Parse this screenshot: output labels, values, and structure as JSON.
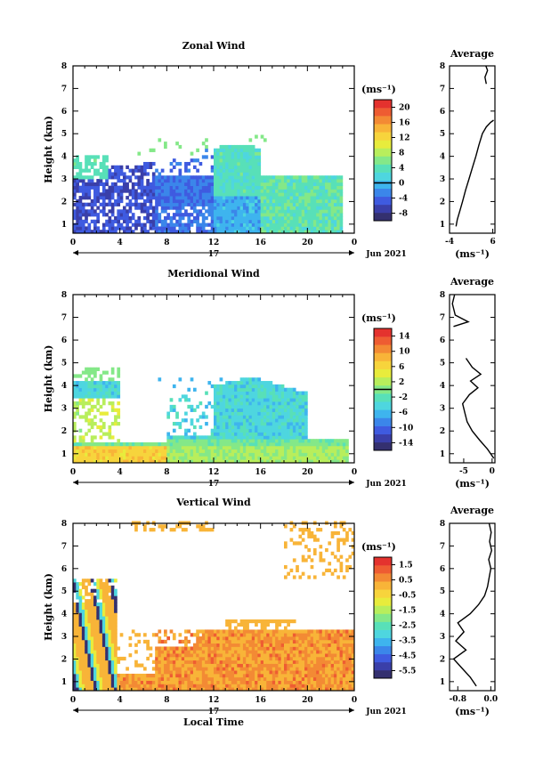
{
  "date_label": "Jun 2021",
  "day_label": "17",
  "unit_label": "(ms⁻¹)",
  "footer_xlabel": "Local Time",
  "palette": [
    "#34306f",
    "#3a3fa9",
    "#3f5be0",
    "#3b86ea",
    "#3eb4ee",
    "#4ed6df",
    "#58e0b8",
    "#84e888",
    "#b8ee5c",
    "#e8ec3c",
    "#f7d43c",
    "#f8b438",
    "#f38a34",
    "#ee5c32",
    "#e4322e"
  ],
  "chart_data": [
    {
      "type": "heatmap",
      "title": "Zonal Wind",
      "xlabel": "",
      "ylabel": "Height (km)",
      "x_ticks": [
        "0",
        "4",
        "8",
        "12",
        "16",
        "20",
        "0"
      ],
      "y_ticks": [
        "1",
        "2",
        "3",
        "4",
        "5",
        "6",
        "7",
        "8"
      ],
      "xlim": [
        0,
        24
      ],
      "ylim": [
        0.6,
        8
      ],
      "colorbar_ticks": [
        "20",
        "16",
        "12",
        "8",
        "4",
        "0",
        "-4",
        "-8"
      ],
      "colorbar_range": [
        -10,
        22
      ],
      "contour_level": 0,
      "profile": {
        "title": "Average",
        "xlabel": "(ms⁻¹)",
        "x_ticks": [
          "-4",
          "6"
        ],
        "xlim": [
          -4,
          6.5
        ],
        "points": [
          [
            -2.5,
            0.9
          ],
          [
            -2.2,
            1.2
          ],
          [
            -1.6,
            1.6
          ],
          [
            -1.0,
            2.0
          ],
          [
            -0.3,
            2.5
          ],
          [
            0.5,
            3.0
          ],
          [
            1.3,
            3.5
          ],
          [
            2.1,
            4.0
          ],
          [
            2.8,
            4.5
          ],
          [
            3.6,
            5.0
          ],
          [
            4.5,
            5.3
          ],
          [
            5.5,
            5.5
          ],
          [
            6.2,
            5.6
          ]
        ],
        "points_upper": [
          [
            4.5,
            7.2
          ],
          [
            4.2,
            7.5
          ],
          [
            4.8,
            7.8
          ],
          [
            4.4,
            8.0
          ]
        ]
      }
    },
    {
      "type": "heatmap",
      "title": "Meridional Wind",
      "xlabel": "",
      "ylabel": "Height (km)",
      "x_ticks": [
        "0",
        "4",
        "8",
        "12",
        "16",
        "20",
        "0"
      ],
      "y_ticks": [
        "1",
        "2",
        "3",
        "4",
        "5",
        "6",
        "7",
        "8"
      ],
      "xlim": [
        0,
        24
      ],
      "ylim": [
        0.6,
        8
      ],
      "colorbar_ticks": [
        "14",
        "10",
        "6",
        "2",
        "-2",
        "-6",
        "-10",
        "-14"
      ],
      "colorbar_range": [
        -16,
        16
      ],
      "contour_level": 0,
      "profile": {
        "title": "Average",
        "xlabel": "(ms⁻¹)",
        "x_ticks": [
          "-5",
          "0"
        ],
        "xlim": [
          -7.5,
          0.5
        ],
        "points": [
          [
            0.3,
            0.8
          ],
          [
            -0.8,
            1.2
          ],
          [
            -2.2,
            1.6
          ],
          [
            -3.5,
            2.0
          ],
          [
            -4.4,
            2.4
          ],
          [
            -4.8,
            2.8
          ],
          [
            -5.2,
            3.2
          ],
          [
            -4.0,
            3.6
          ],
          [
            -2.5,
            3.9
          ],
          [
            -3.8,
            4.2
          ],
          [
            -2.0,
            4.5
          ],
          [
            -3.5,
            4.8
          ],
          [
            -4.6,
            5.2
          ]
        ],
        "points_upper": [
          [
            -6.8,
            6.6
          ],
          [
            -4.2,
            6.8
          ],
          [
            -6.5,
            7.1
          ],
          [
            -7.0,
            7.6
          ],
          [
            -6.6,
            8.0
          ]
        ]
      }
    },
    {
      "type": "heatmap",
      "title": "Vertical Wind",
      "xlabel": "Local Time",
      "ylabel": "Height (km)",
      "x_ticks": [
        "0",
        "4",
        "8",
        "12",
        "16",
        "20",
        "0"
      ],
      "y_ticks": [
        "1",
        "2",
        "3",
        "4",
        "5",
        "6",
        "7",
        "8"
      ],
      "xlim": [
        0,
        24
      ],
      "ylim": [
        0.6,
        8
      ],
      "colorbar_ticks": [
        "1.5",
        "0.5",
        "-0.5",
        "-1.5",
        "-2.5",
        "-3.5",
        "-4.5",
        "-5.5"
      ],
      "colorbar_range": [
        -6,
        2
      ],
      "profile": {
        "title": "Average",
        "xlabel": "(ms⁻¹)",
        "x_ticks": [
          "-0.8",
          "0.0"
        ],
        "xlim": [
          -1.0,
          0.1
        ],
        "points": [
          [
            -0.35,
            0.8
          ],
          [
            -0.5,
            1.2
          ],
          [
            -0.7,
            1.6
          ],
          [
            -0.9,
            2.0
          ],
          [
            -0.6,
            2.4
          ],
          [
            -0.85,
            2.8
          ],
          [
            -0.65,
            3.2
          ],
          [
            -0.8,
            3.6
          ],
          [
            -0.5,
            4.0
          ],
          [
            -0.3,
            4.4
          ],
          [
            -0.15,
            4.8
          ],
          [
            -0.08,
            5.2
          ],
          [
            -0.04,
            5.6
          ],
          [
            0.0,
            6.0
          ],
          [
            -0.05,
            6.4
          ],
          [
            0.02,
            6.8
          ],
          [
            -0.03,
            7.2
          ],
          [
            0.01,
            7.6
          ],
          [
            -0.04,
            8.0
          ]
        ]
      }
    }
  ]
}
